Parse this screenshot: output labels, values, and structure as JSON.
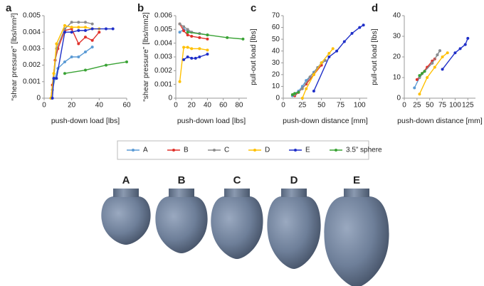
{
  "chart_data": [
    {
      "type": "line",
      "panel_label": "a",
      "xlabel": "push-down load [lbs]",
      "ylabel": "“shear pressure” [lbs/mm²]",
      "xlim": [
        0,
        60
      ],
      "xticks": [
        0,
        20,
        40,
        60
      ],
      "ylim": [
        0,
        0.005
      ],
      "yticks": [
        0,
        0.001,
        0.002,
        0.003,
        0.004,
        0.005
      ],
      "series": [
        {
          "name": "A",
          "color": "#5b9bd5",
          "x": [
            5,
            6,
            8,
            10,
            15,
            20,
            25,
            30,
            35
          ],
          "values": [
            0,
            0.0005,
            0.0012,
            0.0018,
            0.0022,
            0.0025,
            0.0025,
            0.0028,
            0.0031
          ]
        },
        {
          "name": "B",
          "color": "#e0302a",
          "x": [
            5,
            6,
            8,
            10,
            15,
            20,
            25,
            30,
            35,
            40
          ],
          "values": [
            0,
            0.0008,
            0.0023,
            0.003,
            0.0041,
            0.0042,
            0.0033,
            0.0037,
            0.0035,
            0.004
          ]
        },
        {
          "name": "C",
          "color": "#8c8c8c",
          "x": [
            5,
            7,
            9,
            15,
            20,
            25,
            30,
            35
          ],
          "values": [
            0,
            0.0012,
            0.003,
            0.0042,
            0.0046,
            0.0046,
            0.0046,
            0.0045
          ]
        },
        {
          "name": "D",
          "color": "#ffc000",
          "x": [
            5,
            7,
            9,
            15,
            20,
            25,
            30,
            35,
            40
          ],
          "values": [
            0,
            0.0015,
            0.0033,
            0.0044,
            0.0043,
            0.0043,
            0.0043,
            0.0042,
            0.0042
          ]
        },
        {
          "name": "E",
          "color": "#1f2fc8",
          "x": [
            6,
            7,
            9,
            15,
            20,
            25,
            30,
            35,
            45,
            50
          ],
          "values": [
            0,
            0.0012,
            0.0012,
            0.004,
            0.004,
            0.0041,
            0.0041,
            0.0042,
            0.0042,
            0.0042
          ]
        },
        {
          "name": "3.5” sphere",
          "color": "#3aa335",
          "x": [
            15,
            30,
            45,
            60
          ],
          "values": [
            0.0015,
            0.0017,
            0.002,
            0.0022
          ]
        }
      ]
    },
    {
      "type": "line",
      "panel_label": "b",
      "xlabel": "push-down load [lbs]",
      "ylabel": "“shear pressure” [lbs/mm2]",
      "xlim": [
        0,
        90
      ],
      "xticks": [
        0,
        20,
        40,
        60,
        80
      ],
      "ylim": [
        0,
        0.006
      ],
      "yticks": [
        0,
        0.001,
        0.002,
        0.003,
        0.004,
        0.005,
        0.006
      ],
      "series": [
        {
          "name": "A",
          "color": "#5b9bd5",
          "x": [
            5,
            10,
            20,
            30,
            40
          ],
          "values": [
            0.0048,
            0.005,
            0.0048,
            0.0047,
            0.0046
          ]
        },
        {
          "name": "B",
          "color": "#e0302a",
          "x": [
            5,
            10,
            15,
            20,
            30,
            40
          ],
          "values": [
            0.0054,
            0.0049,
            0.0046,
            0.0045,
            0.0044,
            0.0043
          ]
        },
        {
          "name": "C",
          "color": "#8c8c8c",
          "x": [
            5,
            10,
            15,
            20,
            30,
            40
          ],
          "values": [
            0.0054,
            0.0052,
            0.005,
            0.0048,
            0.0047,
            0.0046
          ]
        },
        {
          "name": "D",
          "color": "#ffc000",
          "x": [
            5,
            10,
            15,
            20,
            30,
            40
          ],
          "values": [
            0.0012,
            0.0037,
            0.0037,
            0.0036,
            0.0036,
            0.0035
          ]
        },
        {
          "name": "E",
          "color": "#1f2fc8",
          "x": [
            10,
            15,
            20,
            25,
            30,
            40
          ],
          "values": [
            0.0028,
            0.003,
            0.0029,
            0.0029,
            0.003,
            0.0032
          ]
        },
        {
          "name": "3.5” sphere",
          "color": "#3aa335",
          "x": [
            15,
            40,
            65,
            85
          ],
          "values": [
            0.0048,
            0.0046,
            0.0044,
            0.0043
          ]
        }
      ]
    },
    {
      "type": "line",
      "panel_label": "c",
      "xlabel": "push-down distance [mm]",
      "ylabel": "pull-out load [lbs]",
      "xlim": [
        0,
        110
      ],
      "xticks": [
        0,
        25,
        50,
        75,
        100
      ],
      "ylim": [
        0,
        70
      ],
      "yticks": [
        0,
        10,
        20,
        30,
        40,
        50,
        60,
        70
      ],
      "series": [
        {
          "name": "A",
          "color": "#5b9bd5",
          "x": [
            12,
            15,
            20,
            25,
            30,
            40,
            50
          ],
          "values": [
            2,
            4,
            6,
            10,
            15,
            22,
            30
          ]
        },
        {
          "name": "B",
          "color": "#e0302a",
          "x": [
            15,
            20,
            30,
            40,
            50
          ],
          "values": [
            2,
            5,
            12,
            20,
            28
          ]
        },
        {
          "name": "C",
          "color": "#8c8c8c",
          "x": [
            15,
            25,
            35,
            45,
            55
          ],
          "values": [
            3,
            8,
            18,
            26,
            32
          ]
        },
        {
          "name": "D",
          "color": "#ffc000",
          "x": [
            25,
            30,
            40,
            50,
            60,
            65
          ],
          "values": [
            0,
            8,
            20,
            30,
            38,
            42
          ]
        },
        {
          "name": "E",
          "color": "#1f2fc8",
          "x": [
            40,
            60,
            70,
            80,
            90,
            100,
            105
          ],
          "values": [
            6,
            35,
            40,
            48,
            55,
            60,
            62
          ]
        },
        {
          "name": "3.5” sphere",
          "color": "#3aa335",
          "x": [
            12,
            15,
            20
          ],
          "values": [
            3,
            4,
            5
          ]
        }
      ]
    },
    {
      "type": "line",
      "panel_label": "d",
      "xlabel": "push-down distance [mm]",
      "ylabel": "pull-out load [lbs]",
      "xlim": [
        0,
        140
      ],
      "xticks": [
        0,
        25,
        50,
        75,
        100,
        125
      ],
      "ylim": [
        0,
        40
      ],
      "yticks": [
        0,
        10,
        20,
        30,
        40
      ],
      "series": [
        {
          "name": "A",
          "color": "#5b9bd5",
          "x": [
            20,
            30,
            40,
            55,
            65,
            70
          ],
          "values": [
            5,
            10,
            13,
            17,
            21,
            23
          ]
        },
        {
          "name": "B",
          "color": "#e0302a",
          "x": [
            25,
            35,
            45,
            55,
            60
          ],
          "values": [
            9,
            12,
            15,
            18,
            19
          ]
        },
        {
          "name": "C",
          "color": "#8c8c8c",
          "x": [
            30,
            40,
            55,
            65,
            70
          ],
          "values": [
            10,
            13,
            17,
            21,
            23
          ]
        },
        {
          "name": "D",
          "color": "#ffc000",
          "x": [
            30,
            45,
            60,
            75,
            85
          ],
          "values": [
            2,
            10,
            15,
            20,
            22
          ]
        },
        {
          "name": "E",
          "color": "#1f2fc8",
          "x": [
            75,
            100,
            110,
            120,
            125
          ],
          "values": [
            14,
            22,
            24,
            26,
            29
          ]
        },
        {
          "name": "3.5” sphere",
          "color": "#3aa335",
          "x": [
            30,
            35,
            40
          ],
          "values": [
            11,
            12,
            13
          ]
        }
      ]
    }
  ],
  "shapes": {
    "labels": [
      "A",
      "B",
      "C",
      "D",
      "E"
    ]
  }
}
